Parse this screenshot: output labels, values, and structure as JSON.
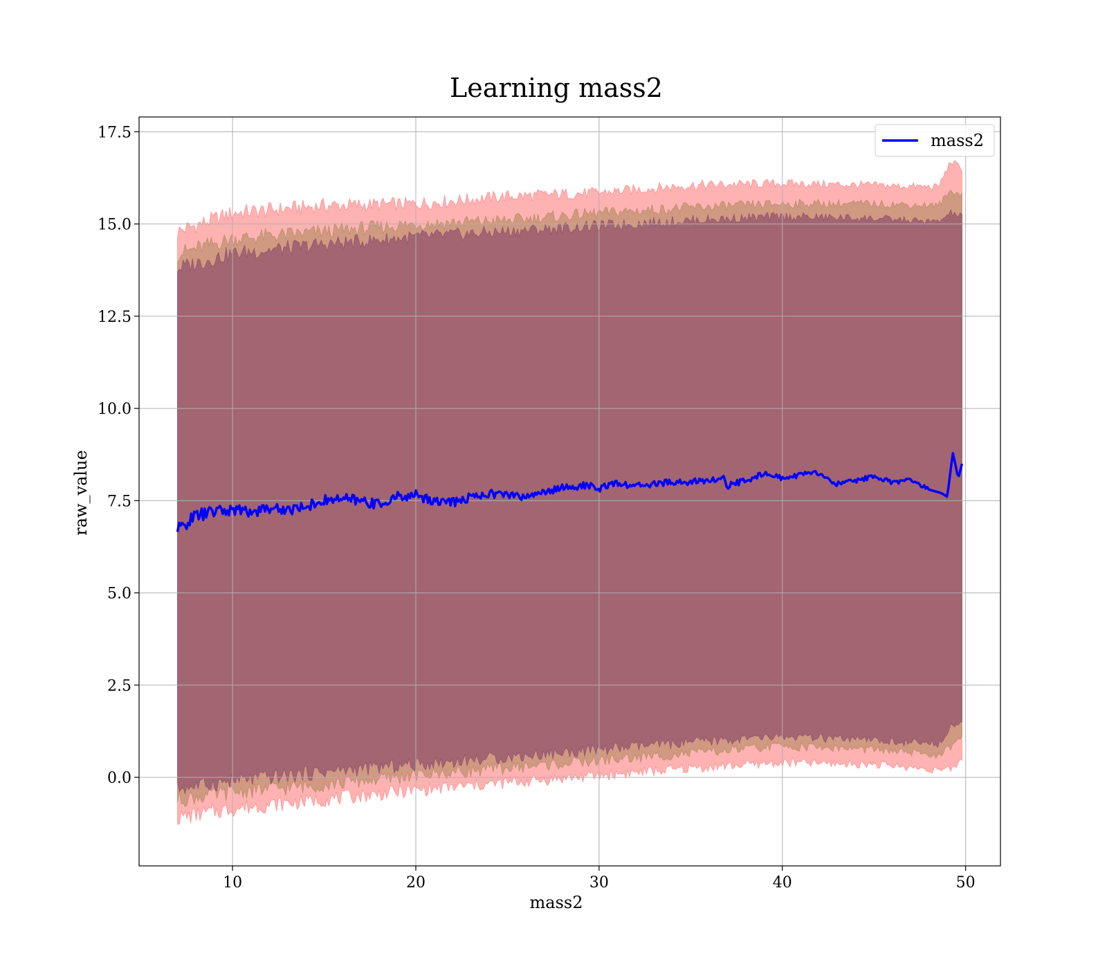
{
  "chart_data": {
    "type": "line",
    "title": "Learning mass2",
    "xlabel": "mass2",
    "ylabel": "raw_value",
    "xlim": [
      4.9,
      51.9
    ],
    "ylim": [
      -2.4,
      17.9
    ],
    "xticks": [
      10,
      20,
      30,
      40,
      50
    ],
    "yticks": [
      0.0,
      2.5,
      5.0,
      7.5,
      10.0,
      12.5,
      15.0,
      17.5
    ],
    "xtick_labels": [
      "10",
      "20",
      "30",
      "40",
      "50"
    ],
    "ytick_labels": [
      "0.0",
      "2.5",
      "5.0",
      "7.5",
      "10.0",
      "12.5",
      "15.0",
      "17.5"
    ],
    "grid": true,
    "legend": {
      "placement": "top-right",
      "entries": [
        "mass2"
      ]
    },
    "colors": {
      "line": "#0000ff",
      "band_outer": "#ff7f7f",
      "band_mid": "#b08860",
      "band_inner": "#8b4a6a"
    },
    "series": [
      {
        "name": "mass2",
        "x": [
          7.0,
          7.5,
          8.0,
          9.0,
          10.0,
          11.0,
          12.0,
          13.0,
          14.0,
          15.0,
          16.0,
          17.0,
          18.0,
          19.0,
          20.0,
          21.0,
          22.0,
          23.0,
          24.0,
          25.0,
          26.0,
          27.0,
          28.0,
          29.0,
          30.0,
          31.0,
          32.0,
          33.0,
          34.0,
          35.0,
          36.0,
          36.8,
          37.0,
          38.0,
          39.0,
          40.0,
          41.0,
          42.0,
          43.0,
          44.0,
          45.0,
          46.0,
          47.0,
          48.0,
          48.7,
          49.0,
          49.3,
          49.6,
          49.8
        ],
        "y": [
          6.7,
          6.9,
          7.1,
          7.2,
          7.25,
          7.2,
          7.3,
          7.25,
          7.35,
          7.5,
          7.55,
          7.5,
          7.4,
          7.6,
          7.65,
          7.5,
          7.45,
          7.6,
          7.7,
          7.65,
          7.6,
          7.75,
          7.85,
          7.9,
          7.85,
          7.95,
          7.9,
          7.95,
          8.0,
          8.0,
          8.05,
          8.1,
          7.9,
          8.05,
          8.25,
          8.1,
          8.2,
          8.25,
          7.95,
          8.05,
          8.15,
          8.0,
          8.05,
          7.8,
          7.7,
          7.6,
          8.8,
          8.1,
          8.5
        ]
      }
    ],
    "bands": [
      {
        "x": [
          7.0,
          10.0,
          15.0,
          20.0,
          25.0,
          30.0,
          35.0,
          40.0,
          45.0,
          48.5,
          49.2,
          49.8
        ],
        "lower": [
          -1.1,
          -0.85,
          -0.6,
          -0.35,
          -0.15,
          0.05,
          0.25,
          0.4,
          0.35,
          0.2,
          0.2,
          0.5
        ],
        "upper": [
          14.8,
          15.3,
          15.5,
          15.55,
          15.75,
          15.85,
          16.05,
          16.1,
          16.05,
          16.0,
          16.7,
          16.5
        ]
      },
      {
        "x": [
          7.0,
          10.0,
          15.0,
          20.0,
          25.0,
          30.0,
          35.0,
          40.0,
          45.0,
          48.5,
          49.2,
          49.8
        ],
        "lower": [
          -0.6,
          -0.4,
          -0.2,
          0.05,
          0.25,
          0.45,
          0.65,
          0.85,
          0.75,
          0.6,
          0.8,
          1.1
        ],
        "upper": [
          14.2,
          14.6,
          14.8,
          15.0,
          15.1,
          15.3,
          15.45,
          15.55,
          15.55,
          15.5,
          15.9,
          15.8
        ]
      },
      {
        "x": [
          7.0,
          10.0,
          15.0,
          20.0,
          25.0,
          30.0,
          35.0,
          40.0,
          45.0,
          48.5,
          49.2,
          49.8
        ],
        "lower": [
          -0.3,
          -0.1,
          0.15,
          0.35,
          0.55,
          0.75,
          0.95,
          1.1,
          1.0,
          0.9,
          1.4,
          1.5
        ],
        "upper": [
          13.8,
          14.2,
          14.45,
          14.65,
          14.8,
          14.95,
          15.1,
          15.2,
          15.15,
          15.05,
          15.3,
          15.2
        ]
      }
    ]
  }
}
